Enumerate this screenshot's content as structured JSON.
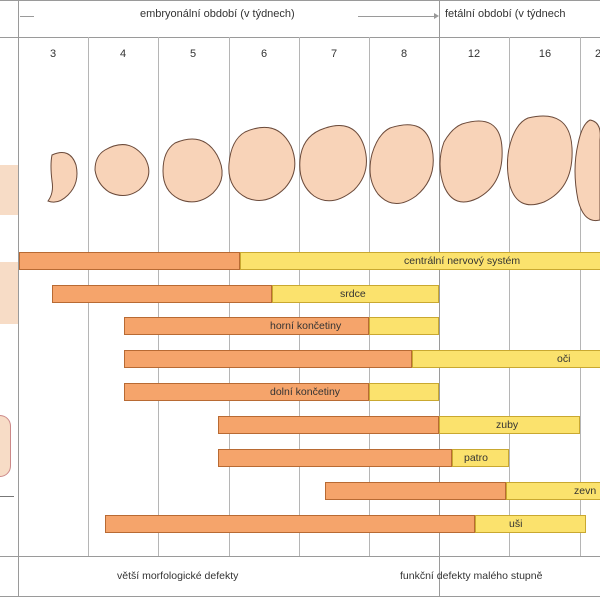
{
  "header": {
    "embryonic_period": "embryonální období (v týdnech)",
    "fetal_period": "fetální období (v týdnech"
  },
  "weeks": [
    "3",
    "4",
    "5",
    "6",
    "7",
    "8",
    "12",
    "16"
  ],
  "organs": {
    "cns": "centrální nervový systém",
    "heart": "srdce",
    "upper_limbs": "horní končetiny",
    "eyes": "oči",
    "lower_limbs": "dolní končetiny",
    "teeth": "zuby",
    "palate": "patro",
    "external_genitalia": "zevn",
    "ears": "uši"
  },
  "footer": {
    "major_defects": "větší morfologické defekty",
    "minor_defects": "funkční defekty malého stupně"
  },
  "colors": {
    "major_sensitivity": "#f5a46b",
    "minor_sensitivity": "#fbe26d",
    "embryo_skin": "#f8d3b8",
    "side_panel": "#f7dcc6"
  }
}
